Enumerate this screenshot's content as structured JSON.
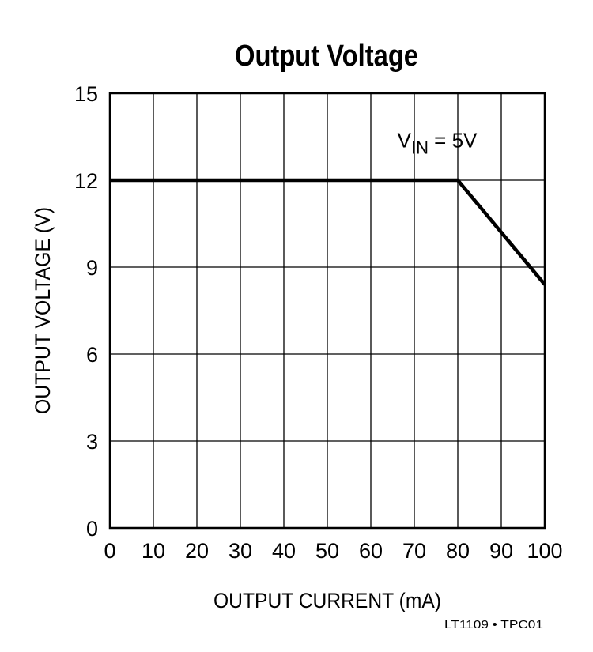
{
  "chart_data": {
    "type": "line",
    "title": "Output Voltage",
    "xlabel": "OUTPUT CURRENT (mA)",
    "ylabel": "OUTPUT VOLTAGE (V)",
    "xlim": [
      0,
      100
    ],
    "ylim": [
      0,
      15
    ],
    "xticks": [
      0,
      10,
      20,
      30,
      40,
      50,
      60,
      70,
      80,
      90,
      100
    ],
    "yticks": [
      0,
      3,
      6,
      9,
      12,
      15
    ],
    "grid": true,
    "series": [
      {
        "x": [
          0,
          80,
          100
        ],
        "y": [
          12,
          12,
          8.4
        ]
      }
    ],
    "annotation": {
      "main": "V",
      "subscript": "IN",
      "suffix": " = 5V",
      "x": 80,
      "y": 13.4
    },
    "footer": "LT1109 • TPC01",
    "colors": {
      "line": "#000000",
      "grid": "#000000",
      "background": "#ffffff"
    }
  }
}
